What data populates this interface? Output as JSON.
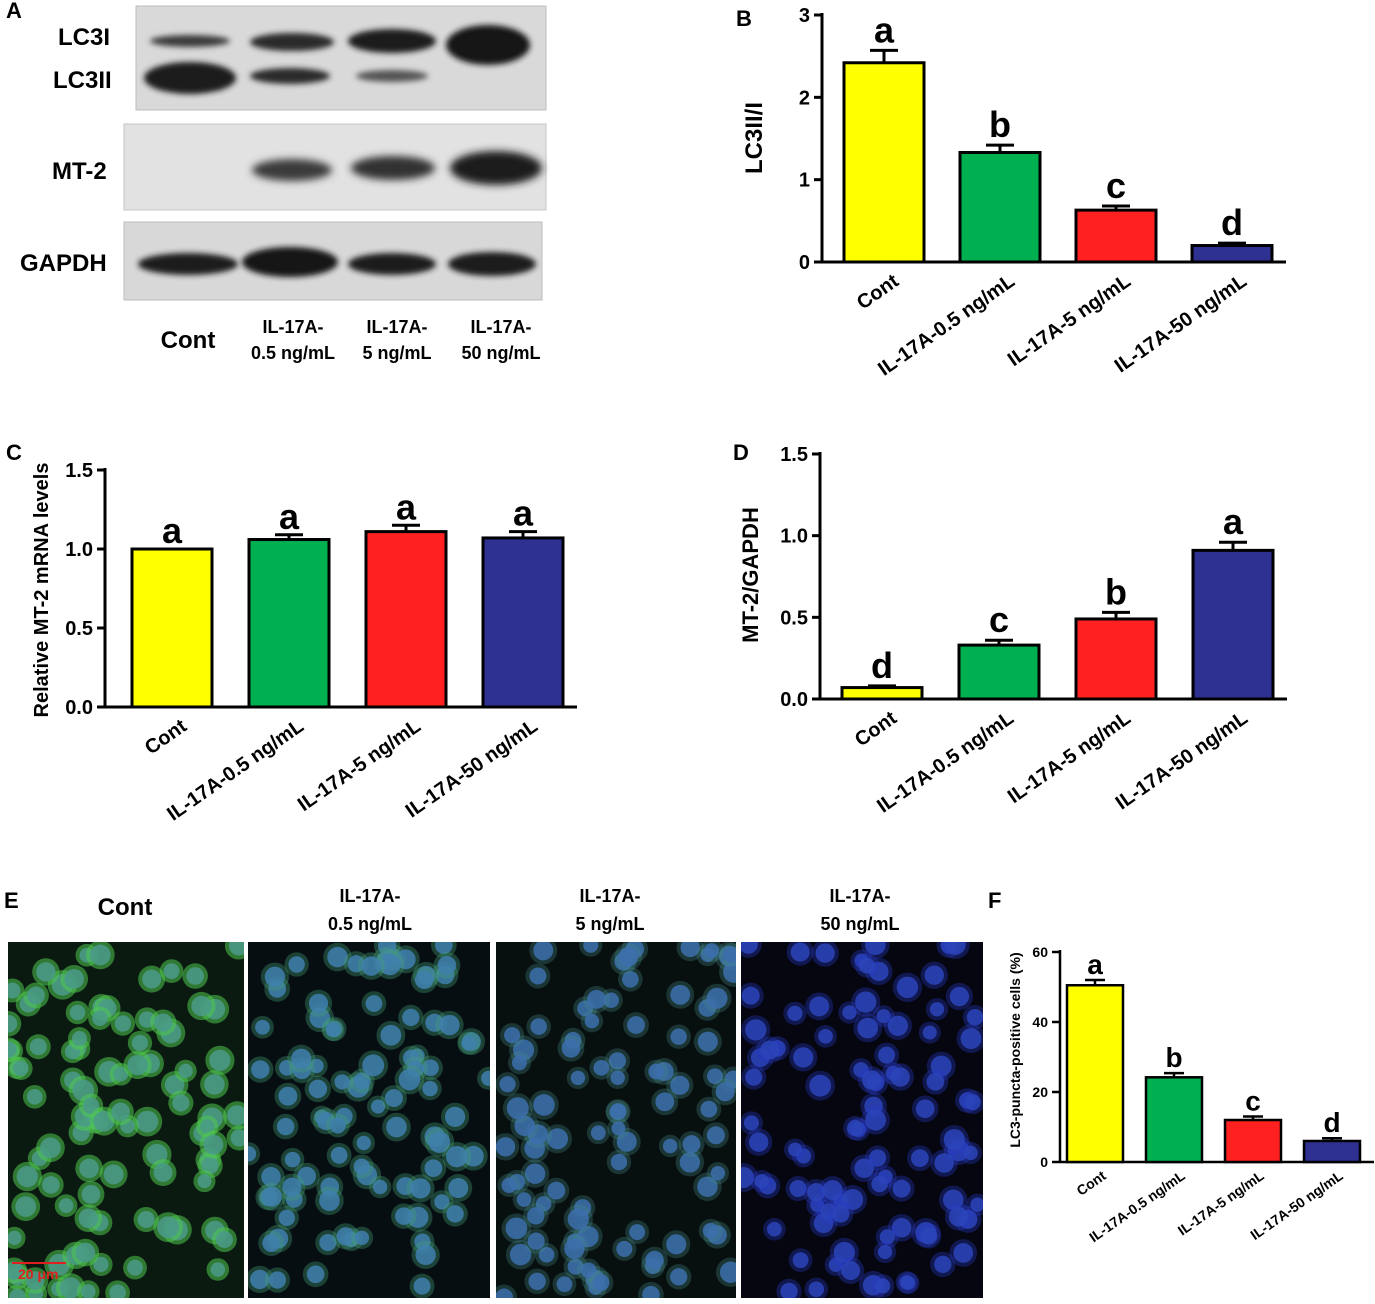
{
  "panels": {
    "a": "A",
    "b": "B",
    "c": "C",
    "d": "D",
    "e": "E",
    "f": "F"
  },
  "blot": {
    "row_labels": [
      "LC3I",
      "LC3II",
      "MT-2",
      "GAPDH"
    ],
    "lanes": [
      {
        "line1": "Cont",
        "line2": ""
      },
      {
        "line1": "IL-17A-",
        "line2": "0.5 ng/mL"
      },
      {
        "line1": "IL-17A-",
        "line2": "5 ng/mL"
      },
      {
        "line1": "IL-17A-",
        "line2": "50 ng/mL"
      }
    ]
  },
  "colors": {
    "cont": "#ffff00",
    "il05": "#00b050",
    "il5": "#ff2020",
    "il50": "#2e3192"
  },
  "microscopy": {
    "titles": [
      {
        "line1": "Cont",
        "line2": ""
      },
      {
        "line1": "IL-17A-",
        "line2": "0.5 ng/mL"
      },
      {
        "line1": "IL-17A-",
        "line2": "5 ng/mL"
      },
      {
        "line1": "IL-17A-",
        "line2": "50 ng/mL"
      }
    ],
    "scale_bar": "20 μm"
  },
  "chart_data": [
    {
      "id": "B",
      "type": "bar",
      "categories": [
        "Cont",
        "IL-17A-0.5 ng/mL",
        "IL-17A-5 ng/mL",
        "IL-17A-50 ng/mL"
      ],
      "values": [
        2.42,
        1.33,
        0.63,
        0.2
      ],
      "errors": [
        0.15,
        0.09,
        0.05,
        0.03
      ],
      "letters": [
        "a",
        "b",
        "c",
        "d"
      ],
      "ylabel": "LC3II/I",
      "ylim": [
        0,
        3
      ],
      "yticks": [
        "0",
        "1",
        "2",
        "3"
      ]
    },
    {
      "id": "C",
      "type": "bar",
      "categories": [
        "Cont",
        "IL-17A-0.5 ng/mL",
        "IL-17A-5 ng/mL",
        "IL-17A-50 ng/mL"
      ],
      "values": [
        1.0,
        1.06,
        1.11,
        1.07
      ],
      "errors": [
        0,
        0.03,
        0.04,
        0.04
      ],
      "letters": [
        "a",
        "a",
        "a",
        "a"
      ],
      "ylabel": "Relative MT-2 mRNA levels",
      "ylim": [
        0,
        1.5
      ],
      "yticks": [
        "0.0",
        "0.5",
        "1.0",
        "1.5"
      ]
    },
    {
      "id": "D",
      "type": "bar",
      "categories": [
        "Cont",
        "IL-17A-0.5 ng/mL",
        "IL-17A-5 ng/mL",
        "IL-17A-50 ng/mL"
      ],
      "values": [
        0.07,
        0.33,
        0.49,
        0.91
      ],
      "errors": [
        0.01,
        0.03,
        0.04,
        0.05
      ],
      "letters": [
        "d",
        "c",
        "b",
        "a"
      ],
      "ylabel": "MT-2/GAPDH",
      "ylim": [
        0,
        1.5
      ],
      "yticks": [
        "0.0",
        "0.5",
        "1.0",
        "1.5"
      ]
    },
    {
      "id": "F",
      "type": "bar",
      "categories": [
        "Cont",
        "IL-17A-0.5 ng/mL",
        "IL-17A-5 ng/mL",
        "IL-17A-50 ng/mL"
      ],
      "values": [
        50.5,
        24.2,
        12.0,
        6.0
      ],
      "errors": [
        1.5,
        1.2,
        1.0,
        0.8
      ],
      "letters": [
        "a",
        "b",
        "c",
        "d"
      ],
      "ylabel": "LC3-puncta-positive cells (%)",
      "ylim": [
        0,
        60
      ],
      "yticks": [
        "0",
        "20",
        "40",
        "60"
      ]
    }
  ]
}
